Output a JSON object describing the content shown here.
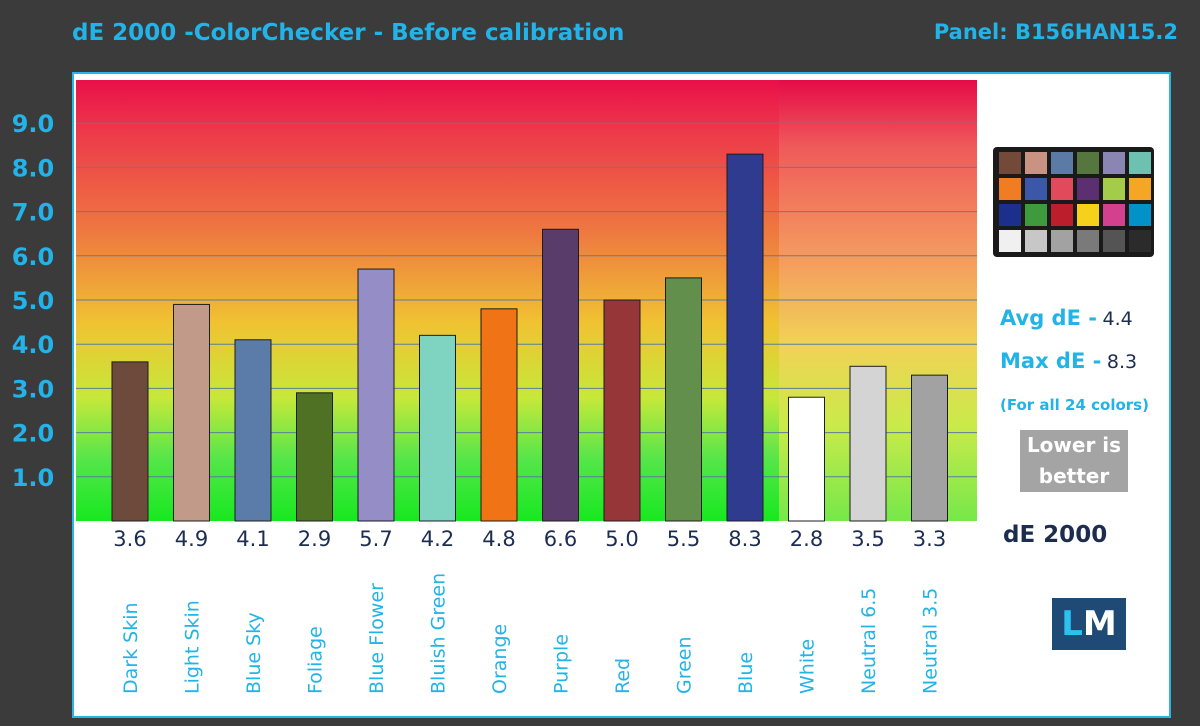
{
  "header": {
    "title": "dE 2000 -ColorChecker - Before calibration",
    "panel": "Panel: B156HAN15.2"
  },
  "summary": {
    "avg_label": "Avg dE -",
    "avg_value": "4.4",
    "max_label": "Max dE -",
    "max_value": "8.3",
    "note": "(For all 24 colors)",
    "lower_line1": "Lower is",
    "lower_line2": "better",
    "metric": "dE 2000"
  },
  "logo": {
    "l": "L",
    "m": "M"
  },
  "colors": {
    "accent": "#22b3e8",
    "dark_text": "#1c2d50",
    "threshold_gray": "#b0b0b0"
  },
  "checker_colors": [
    "#734a3a",
    "#c89382",
    "#5b7aa6",
    "#567640",
    "#8a86b4",
    "#6cc1b1",
    "#f07c23",
    "#3d57a8",
    "#e04a5b",
    "#5c2f73",
    "#a4cc4a",
    "#f4a625",
    "#1c2f8d",
    "#3f9a3e",
    "#bd1e2c",
    "#f5d119",
    "#d3418e",
    "#0292c8",
    "#f0f0f0",
    "#c7c7c7",
    "#a2a2a2",
    "#7a7a7a",
    "#545454",
    "#2b2b2b"
  ],
  "chart_data": {
    "type": "bar",
    "categories": [
      "Dark Skin",
      "Light Skin",
      "Blue Sky",
      "Foliage",
      "Blue Flower",
      "Bluish Green",
      "Orange",
      "Purple",
      "Red",
      "Green",
      "Blue",
      "White",
      "Neutral 6.5",
      "Neutral 3.5"
    ],
    "values": [
      3.6,
      4.9,
      4.1,
      2.9,
      5.7,
      4.2,
      4.8,
      6.6,
      5.0,
      5.5,
      8.3,
      2.8,
      3.5,
      3.3
    ],
    "value_labels": [
      "3.6",
      "4.9",
      "4.1",
      "2.9",
      "5.7",
      "4.2",
      "4.8",
      "6.6",
      "5.0",
      "5.5",
      "8.3",
      "2.8",
      "3.5",
      "3.3"
    ],
    "bar_colors": [
      "#6e4a3c",
      "#c29a89",
      "#5b7ca8",
      "#4f7123",
      "#958dc5",
      "#7fd3c1",
      "#f07316",
      "#5a3c6b",
      "#973639",
      "#628f4b",
      "#2f3b8e",
      "#ffffff",
      "#d4d4d4",
      "#a2a2a2"
    ],
    "yticks": [
      "1.0",
      "2.0",
      "3.0",
      "4.0",
      "5.0",
      "6.0",
      "7.0",
      "8.0",
      "9.0"
    ],
    "ytick_values": [
      1,
      2,
      3,
      4,
      5,
      6,
      7,
      8,
      9
    ],
    "ylim": [
      0,
      10
    ],
    "title": "dE 2000 -ColorChecker - Before calibration",
    "xlabel": "",
    "ylabel": "",
    "grid": true,
    "legend": "none"
  }
}
